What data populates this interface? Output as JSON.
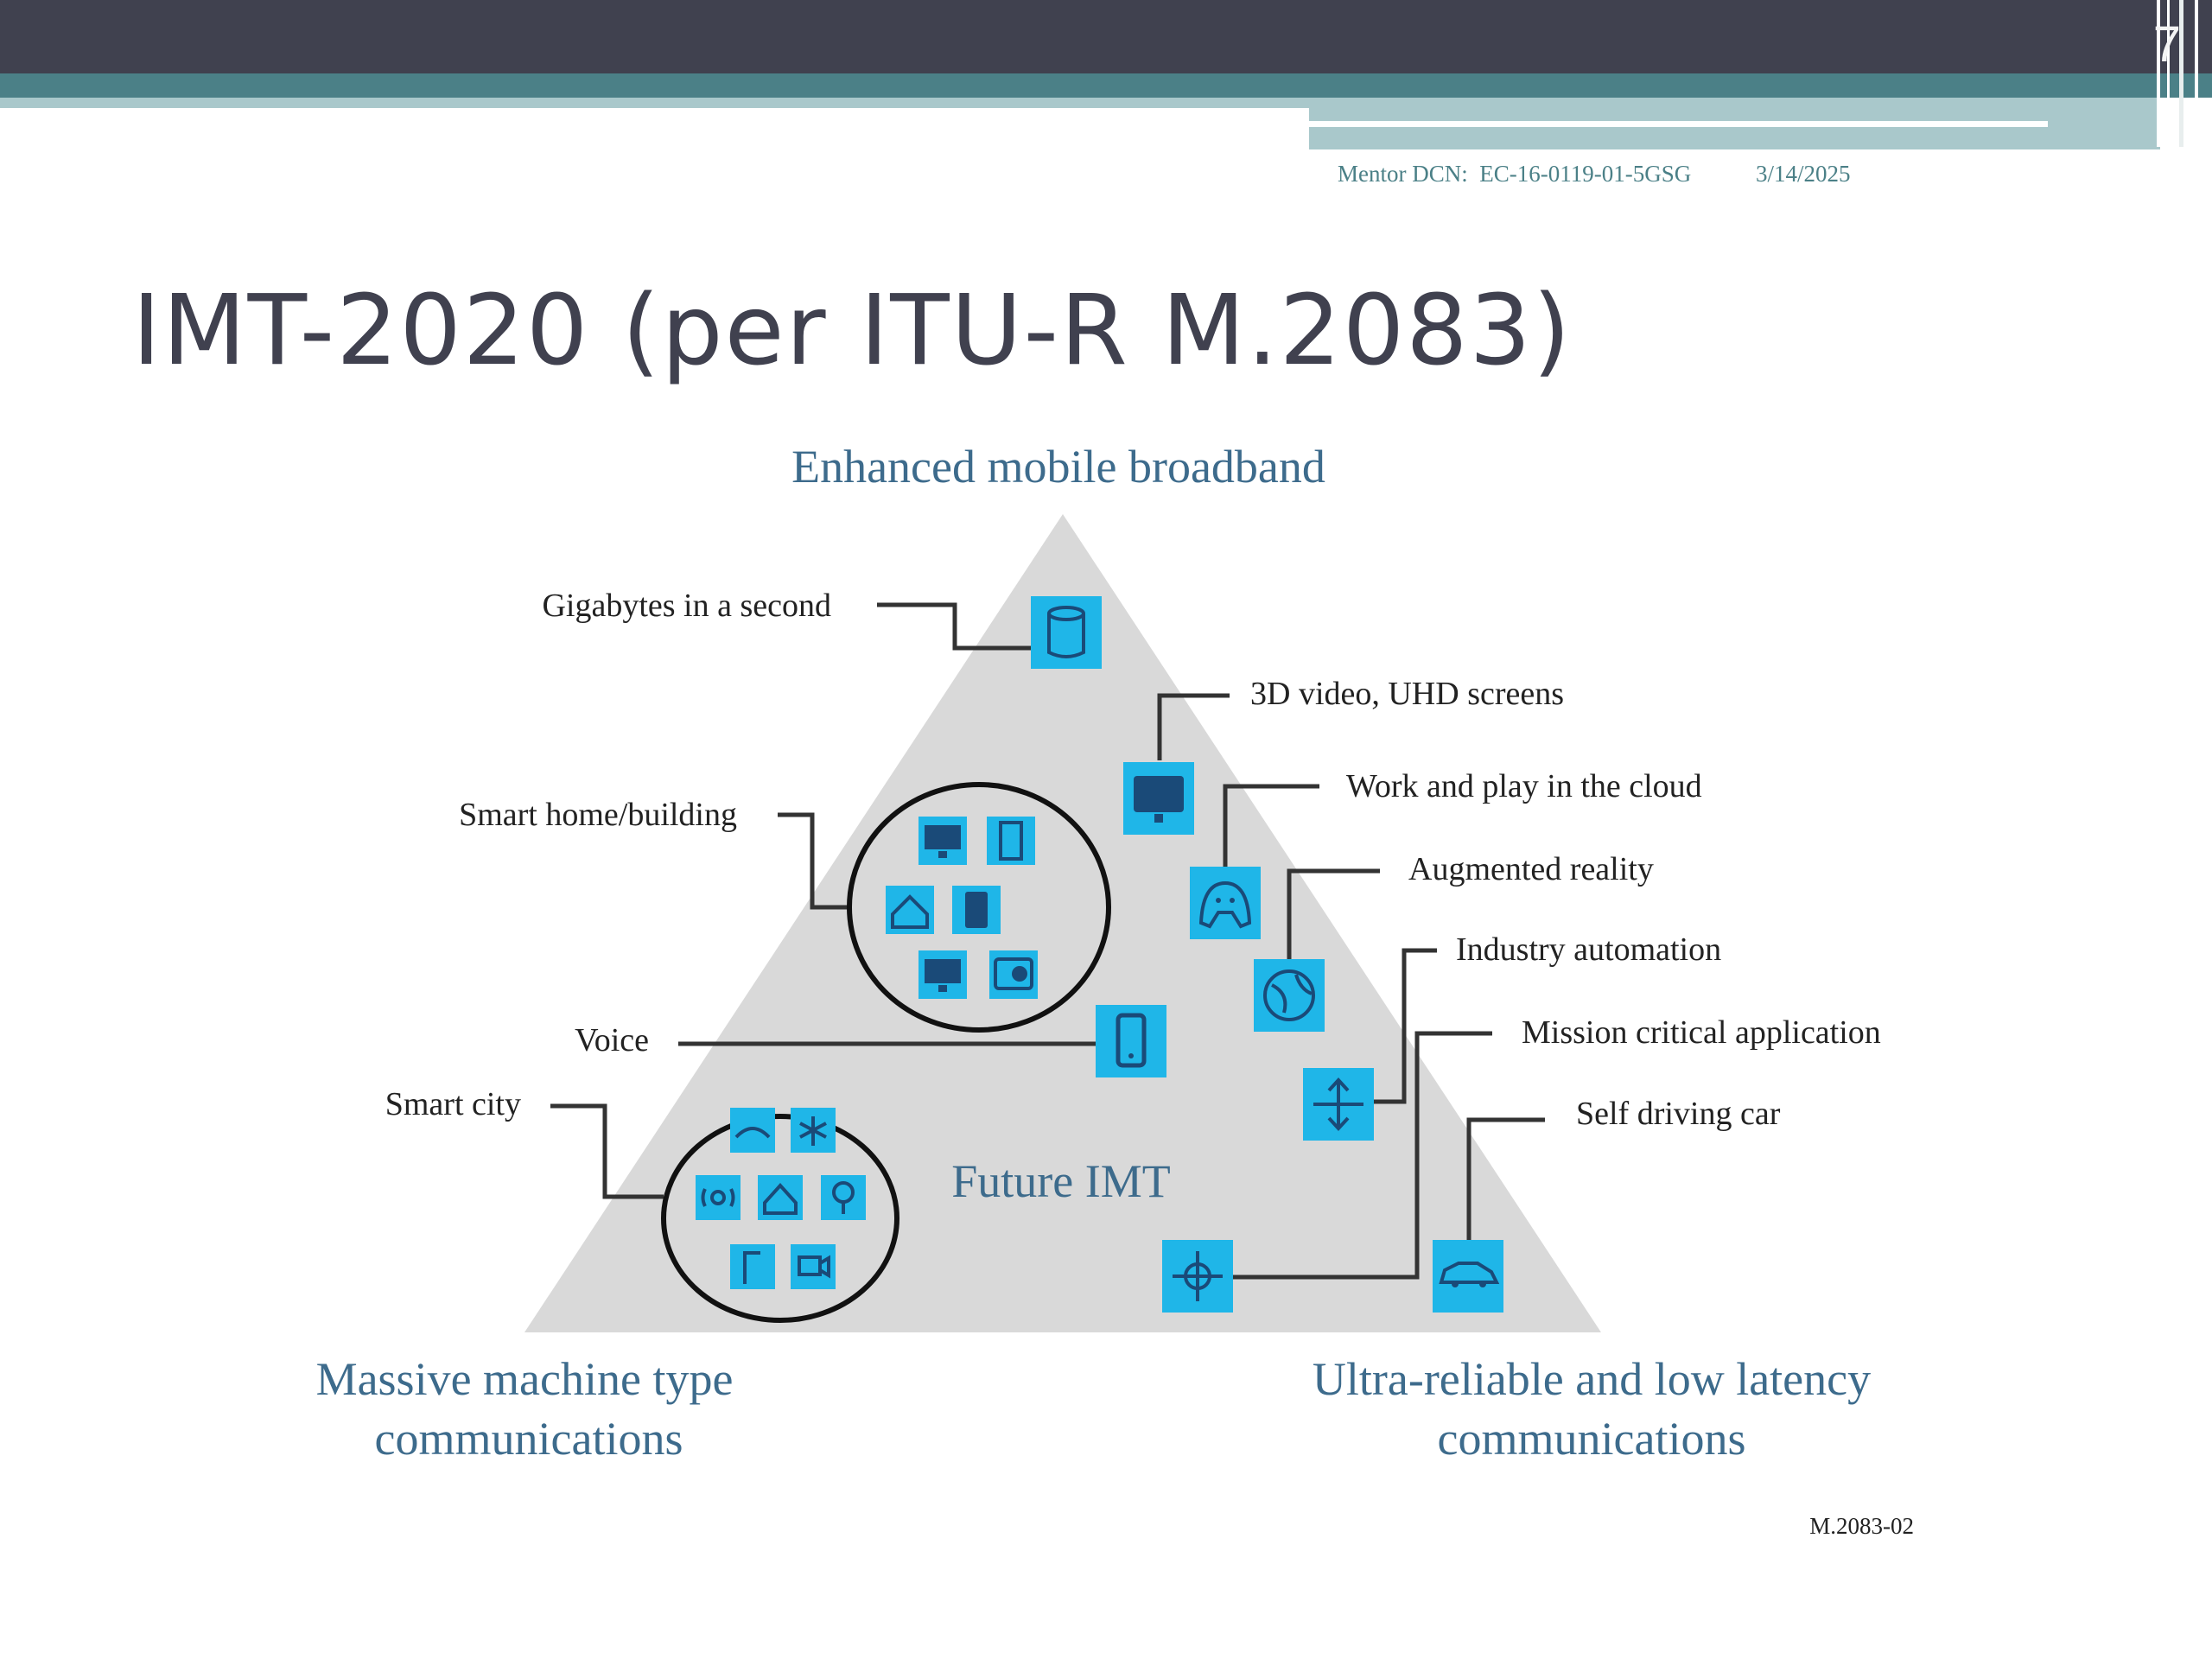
{
  "slide": {
    "number": "7",
    "header_dcn": "Mentor DCN:  EC-16-0119-01-5GSG",
    "header_date": "3/14/2025",
    "title": "IMT-2020 (per ITU-R M.2083)"
  },
  "diagram": {
    "top_label": "Enhanced mobile broadband",
    "center_label": "Future IMT",
    "bottom_left_label": [
      "Massive machine type",
      "communications"
    ],
    "bottom_right_label": [
      "Ultra-reliable and low latency",
      "communications"
    ],
    "figure_ref": "M.2083-02",
    "callouts": {
      "gigabytes": "Gigabytes in a second",
      "video": "3D video, UHD screens",
      "cloud": "Work and play in the cloud",
      "ar": "Augmented reality",
      "industry": "Industry automation",
      "mission": "Mission critical application",
      "selfdriving": "Self driving car",
      "smarthome": "Smart home/building",
      "voice": "Voice",
      "smartcity": "Smart city"
    },
    "icons": {
      "gigabytes": "database-icon",
      "video": "monitor-icon",
      "cloud": "gamepad-icon",
      "ar": "globe-icon",
      "industry": "robot-arm-icon",
      "mission": "crosshair-icon",
      "selfdriving": "car-icon",
      "voice": "phone-icon"
    },
    "colors": {
      "triangle": "#d9d9d9",
      "icon_fill": "#1fb6e8",
      "icon_glyph": "#1a4a78",
      "label_blue": "#3d6b8c",
      "text": "#222222"
    }
  }
}
